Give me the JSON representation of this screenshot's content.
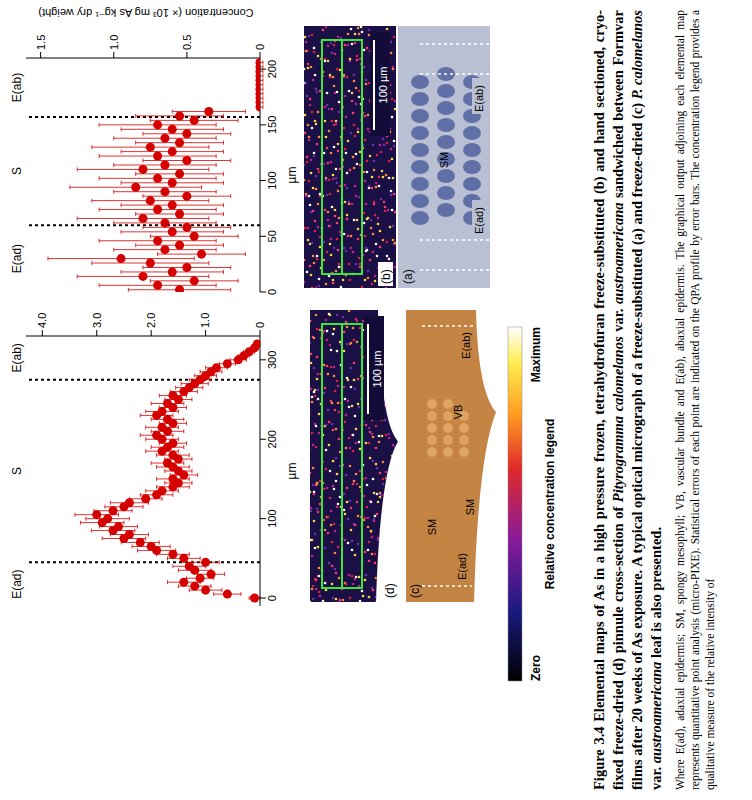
{
  "chart_data": [
    {
      "type": "scatter",
      "x_label": "µm",
      "y_label": "Concentration (× 10³ mg As kg⁻¹ dry weight)",
      "xlim": [
        0,
        210
      ],
      "xticks": [
        0,
        50,
        100,
        150,
        200
      ],
      "ylim": [
        0,
        1.6
      ],
      "yticks": [
        0,
        0.5,
        {
          "value": 1,
          "label": "1.0"
        },
        1.5
      ],
      "boundaries": [
        60,
        157
      ],
      "regions": [
        "E(ad)",
        "S",
        "E(ab)"
      ],
      "color": "#d40000",
      "marker": "circle",
      "x": [
        2,
        6,
        10,
        14,
        18,
        22,
        26,
        30,
        34,
        38,
        42,
        46,
        50,
        54,
        58,
        62,
        66,
        70,
        74,
        78,
        82,
        86,
        90,
        94,
        98,
        102,
        106,
        110,
        114,
        118,
        122,
        126,
        130,
        134,
        138,
        142,
        146,
        150,
        154,
        158,
        162,
        166,
        170,
        174,
        178,
        182,
        186,
        190,
        194,
        198,
        202,
        206
      ],
      "values": [
        0.55,
        0.7,
        0.45,
        0.8,
        0.6,
        0.5,
        0.75,
        0.95,
        0.4,
        0.65,
        0.55,
        0.7,
        0.45,
        0.6,
        0.5,
        0.65,
        0.8,
        0.55,
        0.7,
        0.6,
        0.75,
        0.5,
        0.65,
        0.85,
        0.6,
        0.7,
        0.55,
        0.8,
        0.65,
        0.5,
        0.7,
        0.6,
        0.75,
        0.55,
        0.65,
        0.5,
        0.6,
        0.7,
        0.45,
        0.55,
        0.35,
        0,
        0,
        0,
        0,
        0,
        0,
        0,
        0,
        0,
        0,
        0
      ],
      "errors": [
        0.35,
        0.4,
        0.3,
        0.45,
        0.35,
        0.3,
        0.4,
        0.5,
        0.3,
        0.35,
        0.3,
        0.4,
        0.3,
        0.35,
        0.3,
        0.35,
        0.45,
        0.3,
        0.4,
        0.35,
        0.4,
        0.3,
        0.35,
        0.45,
        0.35,
        0.4,
        0.3,
        0.45,
        0.35,
        0.3,
        0.4,
        0.35,
        0.4,
        0.3,
        0.35,
        0.3,
        0.35,
        0.4,
        0.3,
        0.3,
        0.25,
        0.02,
        0.02,
        0.02,
        0.02,
        0.02,
        0.02,
        0.02,
        0.02,
        0.02,
        0.02,
        0.02
      ]
    },
    {
      "type": "scatter",
      "x_label": "µm",
      "xlim": [
        -10,
        330
      ],
      "xticks": [
        0,
        100,
        200,
        300
      ],
      "ylim": [
        0,
        4.3
      ],
      "yticks": [
        0,
        {
          "value": 1,
          "label": "1.0"
        },
        {
          "value": 2,
          "label": "2.0"
        },
        {
          "value": 3,
          "label": "3.0"
        },
        {
          "value": 4,
          "label": "4.0"
        }
      ],
      "boundaries": [
        45,
        275
      ],
      "regions": [
        "E(ad)",
        "S",
        "E(ab)"
      ],
      "color": "#d40000",
      "marker": "circle",
      "x": [
        0,
        5,
        10,
        15,
        20,
        25,
        30,
        35,
        40,
        45,
        50,
        55,
        60,
        65,
        70,
        75,
        80,
        85,
        90,
        95,
        100,
        105,
        110,
        115,
        120,
        125,
        130,
        135,
        140,
        145,
        150,
        155,
        160,
        165,
        170,
        175,
        180,
        185,
        190,
        195,
        200,
        205,
        210,
        215,
        220,
        225,
        230,
        235,
        240,
        245,
        250,
        255,
        260,
        265,
        270,
        275,
        280,
        285,
        290,
        295,
        300,
        305,
        310,
        315,
        320
      ],
      "values": [
        0.1,
        0.6,
        1.0,
        1.2,
        1.4,
        1.1,
        0.9,
        1.2,
        1.3,
        1.0,
        1.4,
        1.6,
        1.9,
        2.0,
        2.2,
        2.5,
        2.4,
        2.7,
        2.6,
        2.9,
        2.8,
        3.0,
        2.7,
        2.5,
        2.4,
        2.1,
        1.9,
        1.8,
        1.6,
        1.5,
        1.6,
        1.4,
        1.5,
        1.6,
        1.7,
        1.5,
        1.6,
        1.8,
        1.7,
        1.6,
        1.8,
        1.9,
        1.7,
        1.8,
        1.6,
        1.7,
        1.9,
        1.8,
        1.6,
        1.7,
        1.5,
        1.6,
        1.4,
        1.3,
        1.2,
        1.1,
        1.0,
        0.9,
        0.8,
        0.6,
        0.4,
        0.3,
        0.2,
        0.1,
        0.05
      ],
      "errors": [
        0.1,
        0.25,
        0.3,
        0.3,
        0.3,
        0.25,
        0.25,
        0.3,
        0.3,
        0.25,
        0.3,
        0.3,
        0.35,
        0.35,
        0.35,
        0.4,
        0.35,
        0.4,
        0.35,
        0.4,
        0.4,
        0.4,
        0.35,
        0.35,
        0.35,
        0.3,
        0.3,
        0.3,
        0.3,
        0.25,
        0.3,
        0.25,
        0.25,
        0.3,
        0.3,
        0.25,
        0.3,
        0.3,
        0.3,
        0.25,
        0.3,
        0.3,
        0.3,
        0.3,
        0.25,
        0.3,
        0.3,
        0.3,
        0.25,
        0.3,
        0.25,
        0.25,
        0.25,
        0.25,
        0.25,
        0.2,
        0.2,
        0.2,
        0.2,
        0.15,
        0.15,
        0.1,
        0.1,
        0.05,
        0.05
      ]
    }
  ],
  "panels": {
    "a": {
      "label": "(a)",
      "tissue_labels": [
        "SM"
      ],
      "epidermis_labels": [
        "E(ad)",
        "E(ab)"
      ]
    },
    "b": {
      "label": "(b)",
      "scale_bar": "100 µm"
    },
    "c": {
      "label": "(c)",
      "tissue_labels": [
        "SM",
        "VB",
        "SM"
      ],
      "epidermis_labels": [
        "E(ad)",
        "E(ab)"
      ]
    },
    "d": {
      "label": "(d)",
      "scale_bar": "100 µm"
    }
  },
  "legend": {
    "title": "Relative concentration legend",
    "low": "Zero",
    "high": "Maximum"
  },
  "caption": {
    "title": [
      "Figure 3.4 Elemental maps of As in a high pressure frozen, tetrahydrofuran freeze-substituted (b) and hand sectioned, cryo-fixed freeze-dried (d) pinnule cross-section of ",
      "Pityrogramma calomelanos",
      " var. ",
      "austroamericana",
      " sandwiched between Formvar films after 20 weeks of As exposure. A typical optical micrograph of a freeze-substituted (a) and freeze-dried (c) ",
      "P. calomelanos",
      " var. ",
      "austroamericana",
      " leaf is also presented."
    ],
    "note": "Where E(ad), adaxial epidermis; SM, spongy mesophyll; VB, vascular bundle and E(ab), abaxial epidermis. The graphical output adjoining each elemental map represents quantitative point analysis (micro-PIXE). Statistical errors of each point are indicated on the QPA profile by error bars. The concentration legend provides a qualitative measure of the relative intensity of"
  }
}
